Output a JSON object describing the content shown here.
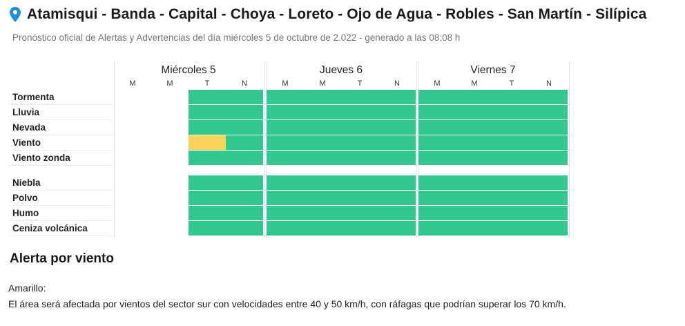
{
  "header": {
    "title": "Atamisqui - Banda - Capital - Choya - Loreto - Ojo de Agua - Robles - San Martín - Silípica",
    "subtitle": "Pronóstico oficial de Alertas y Advertencias del día miércoles 5 de octubre de 2.022 - generado a las 08:08 h",
    "icon": "location-pin-icon",
    "icon_color": "#1f8fd8"
  },
  "days": [
    {
      "label": "Miércoles 5",
      "slots": [
        "M",
        "M",
        "T",
        "N"
      ]
    },
    {
      "label": "Jueves 6",
      "slots": [
        "M",
        "M",
        "T",
        "N"
      ]
    },
    {
      "label": "Viernes 7",
      "slots": [
        "M",
        "M",
        "T",
        "N"
      ]
    }
  ],
  "colors": {
    "green": "#33c790",
    "yellow": "#f9d35a"
  },
  "groups": [
    {
      "rows": [
        {
          "label": "Tormenta",
          "levels": [
            "none",
            "none",
            "green",
            "green",
            "green",
            "green",
            "green",
            "green",
            "green",
            "green",
            "green",
            "green"
          ]
        },
        {
          "label": "Lluvia",
          "levels": [
            "none",
            "none",
            "green",
            "green",
            "green",
            "green",
            "green",
            "green",
            "green",
            "green",
            "green",
            "green"
          ]
        },
        {
          "label": "Nevada",
          "levels": [
            "none",
            "none",
            "green",
            "green",
            "green",
            "green",
            "green",
            "green",
            "green",
            "green",
            "green",
            "green"
          ]
        },
        {
          "label": "Viento",
          "levels": [
            "none",
            "none",
            "yellow",
            "green",
            "green",
            "green",
            "green",
            "green",
            "green",
            "green",
            "green",
            "green"
          ]
        },
        {
          "label": "Viento zonda",
          "levels": [
            "none",
            "none",
            "green",
            "green",
            "green",
            "green",
            "green",
            "green",
            "green",
            "green",
            "green",
            "green"
          ]
        }
      ]
    },
    {
      "rows": [
        {
          "label": "Niebla",
          "levels": [
            "none",
            "none",
            "green",
            "green",
            "green",
            "green",
            "green",
            "green",
            "green",
            "green",
            "green",
            "green"
          ]
        },
        {
          "label": "Polvo",
          "levels": [
            "none",
            "none",
            "green",
            "green",
            "green",
            "green",
            "green",
            "green",
            "green",
            "green",
            "green",
            "green"
          ]
        },
        {
          "label": "Humo",
          "levels": [
            "none",
            "none",
            "green",
            "green",
            "green",
            "green",
            "green",
            "green",
            "green",
            "green",
            "green",
            "green"
          ]
        },
        {
          "label": "Ceniza volcánica",
          "levels": [
            "none",
            "none",
            "green",
            "green",
            "green",
            "green",
            "green",
            "green",
            "green",
            "green",
            "green",
            "green"
          ]
        }
      ]
    }
  ],
  "alert": {
    "title": "Alerta por viento",
    "level": "Amarillo:",
    "description": "El área será afectada por vientos del sector sur con velocidades entre 40 y 50 km/h, con ráfagas que podrían superar los 70 km/h."
  }
}
